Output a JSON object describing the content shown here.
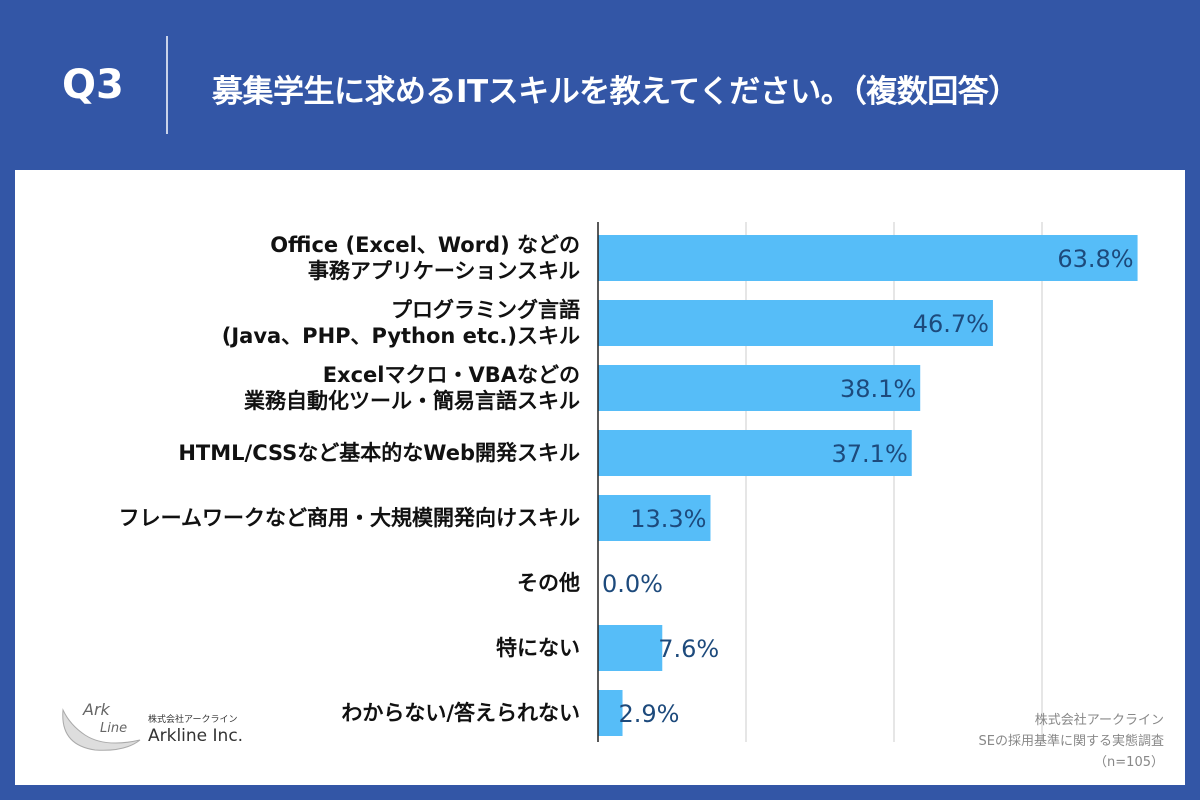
{
  "header": {
    "q": "Q3",
    "title": "募集学生に求めるITスキルを教えてください。（複数回答）"
  },
  "chart_data": {
    "type": "bar",
    "orientation": "horizontal",
    "categories": [
      [
        "Office (Excel、Word) などの",
        "事務アプリケーションスキル"
      ],
      [
        "プログラミング言語",
        "(Java、PHP、Python etc.)スキル"
      ],
      [
        "Excelマクロ・VBAなどの",
        "業務自動化ツール・簡易言語スキル"
      ],
      [
        "HTML/CSSなど基本的なWeb開発スキル"
      ],
      [
        "フレームワークなど商用・大規模開発向けスキル"
      ],
      [
        "その他"
      ],
      [
        "特にない"
      ],
      [
        "わからない/答えられない"
      ]
    ],
    "values": [
      63.8,
      46.7,
      38.1,
      37.1,
      13.3,
      0.0,
      7.6,
      2.9
    ],
    "labels": [
      "63.8%",
      "46.7%",
      "38.1%",
      "37.1%",
      "13.3%",
      "0.0%",
      "7.6%",
      "2.9%"
    ],
    "xlim": [
      0,
      70
    ],
    "grid": "vertical",
    "bar_color": "#56bdf8",
    "label_color": "#1d4a7c"
  },
  "logo": {
    "jp": "株式会社アークライン",
    "en": "Arkline Inc.",
    "mark": "Ark Line"
  },
  "source": {
    "line1": "株式会社アークライン",
    "line2": "SEの採用基準に関する実態調査",
    "line3": "（n=105）"
  }
}
